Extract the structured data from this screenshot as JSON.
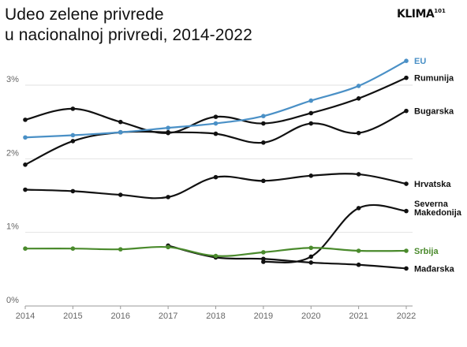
{
  "header": {
    "title_line1": "Udeo zelene privrede",
    "title_line2": "u nacionalnoj privredi, 2014-2022",
    "logo_text": "KLIMA",
    "logo_sup": "101"
  },
  "chart_data": {
    "type": "line",
    "title": "Udeo zelene privrede u nacionalnoj privredi, 2014-2022",
    "x": [
      2014,
      2015,
      2016,
      2017,
      2018,
      2019,
      2020,
      2021,
      2022
    ],
    "ylim": [
      0,
      3.3
    ],
    "yticks": [
      {
        "value": 0,
        "label": "0%"
      },
      {
        "value": 1,
        "label": "1%"
      },
      {
        "value": 2,
        "label": "2%"
      },
      {
        "value": 3,
        "label": "3%"
      }
    ],
    "grid": true,
    "legend": "direct labels at line ends",
    "series": [
      {
        "name": "EU",
        "color": "#4a90c6",
        "label_lines": [
          "EU"
        ],
        "label_color": "#4a90c6",
        "values": [
          2.29,
          2.32,
          2.36,
          2.42,
          2.48,
          2.58,
          2.79,
          2.99,
          3.33
        ]
      },
      {
        "name": "Rumunija",
        "color": "#111111",
        "label_lines": [
          "Rumunija"
        ],
        "label_color": "#111111",
        "values": [
          2.53,
          2.68,
          2.5,
          2.35,
          2.57,
          2.48,
          2.62,
          2.82,
          3.1
        ]
      },
      {
        "name": "Bugarska",
        "color": "#111111",
        "label_lines": [
          "Bugarska"
        ],
        "label_color": "#111111",
        "values": [
          1.92,
          2.24,
          2.36,
          2.36,
          2.34,
          2.22,
          2.48,
          2.35,
          2.65
        ]
      },
      {
        "name": "Hrvatska",
        "color": "#111111",
        "label_lines": [
          "Hrvatska"
        ],
        "label_color": "#111111",
        "values": [
          1.58,
          1.56,
          1.51,
          1.48,
          1.75,
          1.7,
          1.77,
          1.79,
          1.66
        ]
      },
      {
        "name": "Severna Makedonija",
        "color": "#111111",
        "label_lines": [
          "Severna",
          "Makedonija"
        ],
        "label_color": "#111111",
        "values": [
          null,
          null,
          null,
          null,
          null,
          0.6,
          0.67,
          1.33,
          1.29
        ]
      },
      {
        "name": "Srbija",
        "color": "#4a8a2c",
        "label_lines": [
          "Srbija"
        ],
        "label_color": "#4a8a2c",
        "values": [
          0.78,
          0.78,
          0.77,
          0.8,
          0.68,
          0.73,
          0.79,
          0.75,
          0.75
        ]
      },
      {
        "name": "Mađarska",
        "color": "#111111",
        "label_lines": [
          "Mađarska"
        ],
        "label_color": "#111111",
        "values": [
          null,
          null,
          null,
          0.82,
          0.66,
          0.64,
          0.59,
          0.56,
          0.51
        ]
      }
    ]
  }
}
